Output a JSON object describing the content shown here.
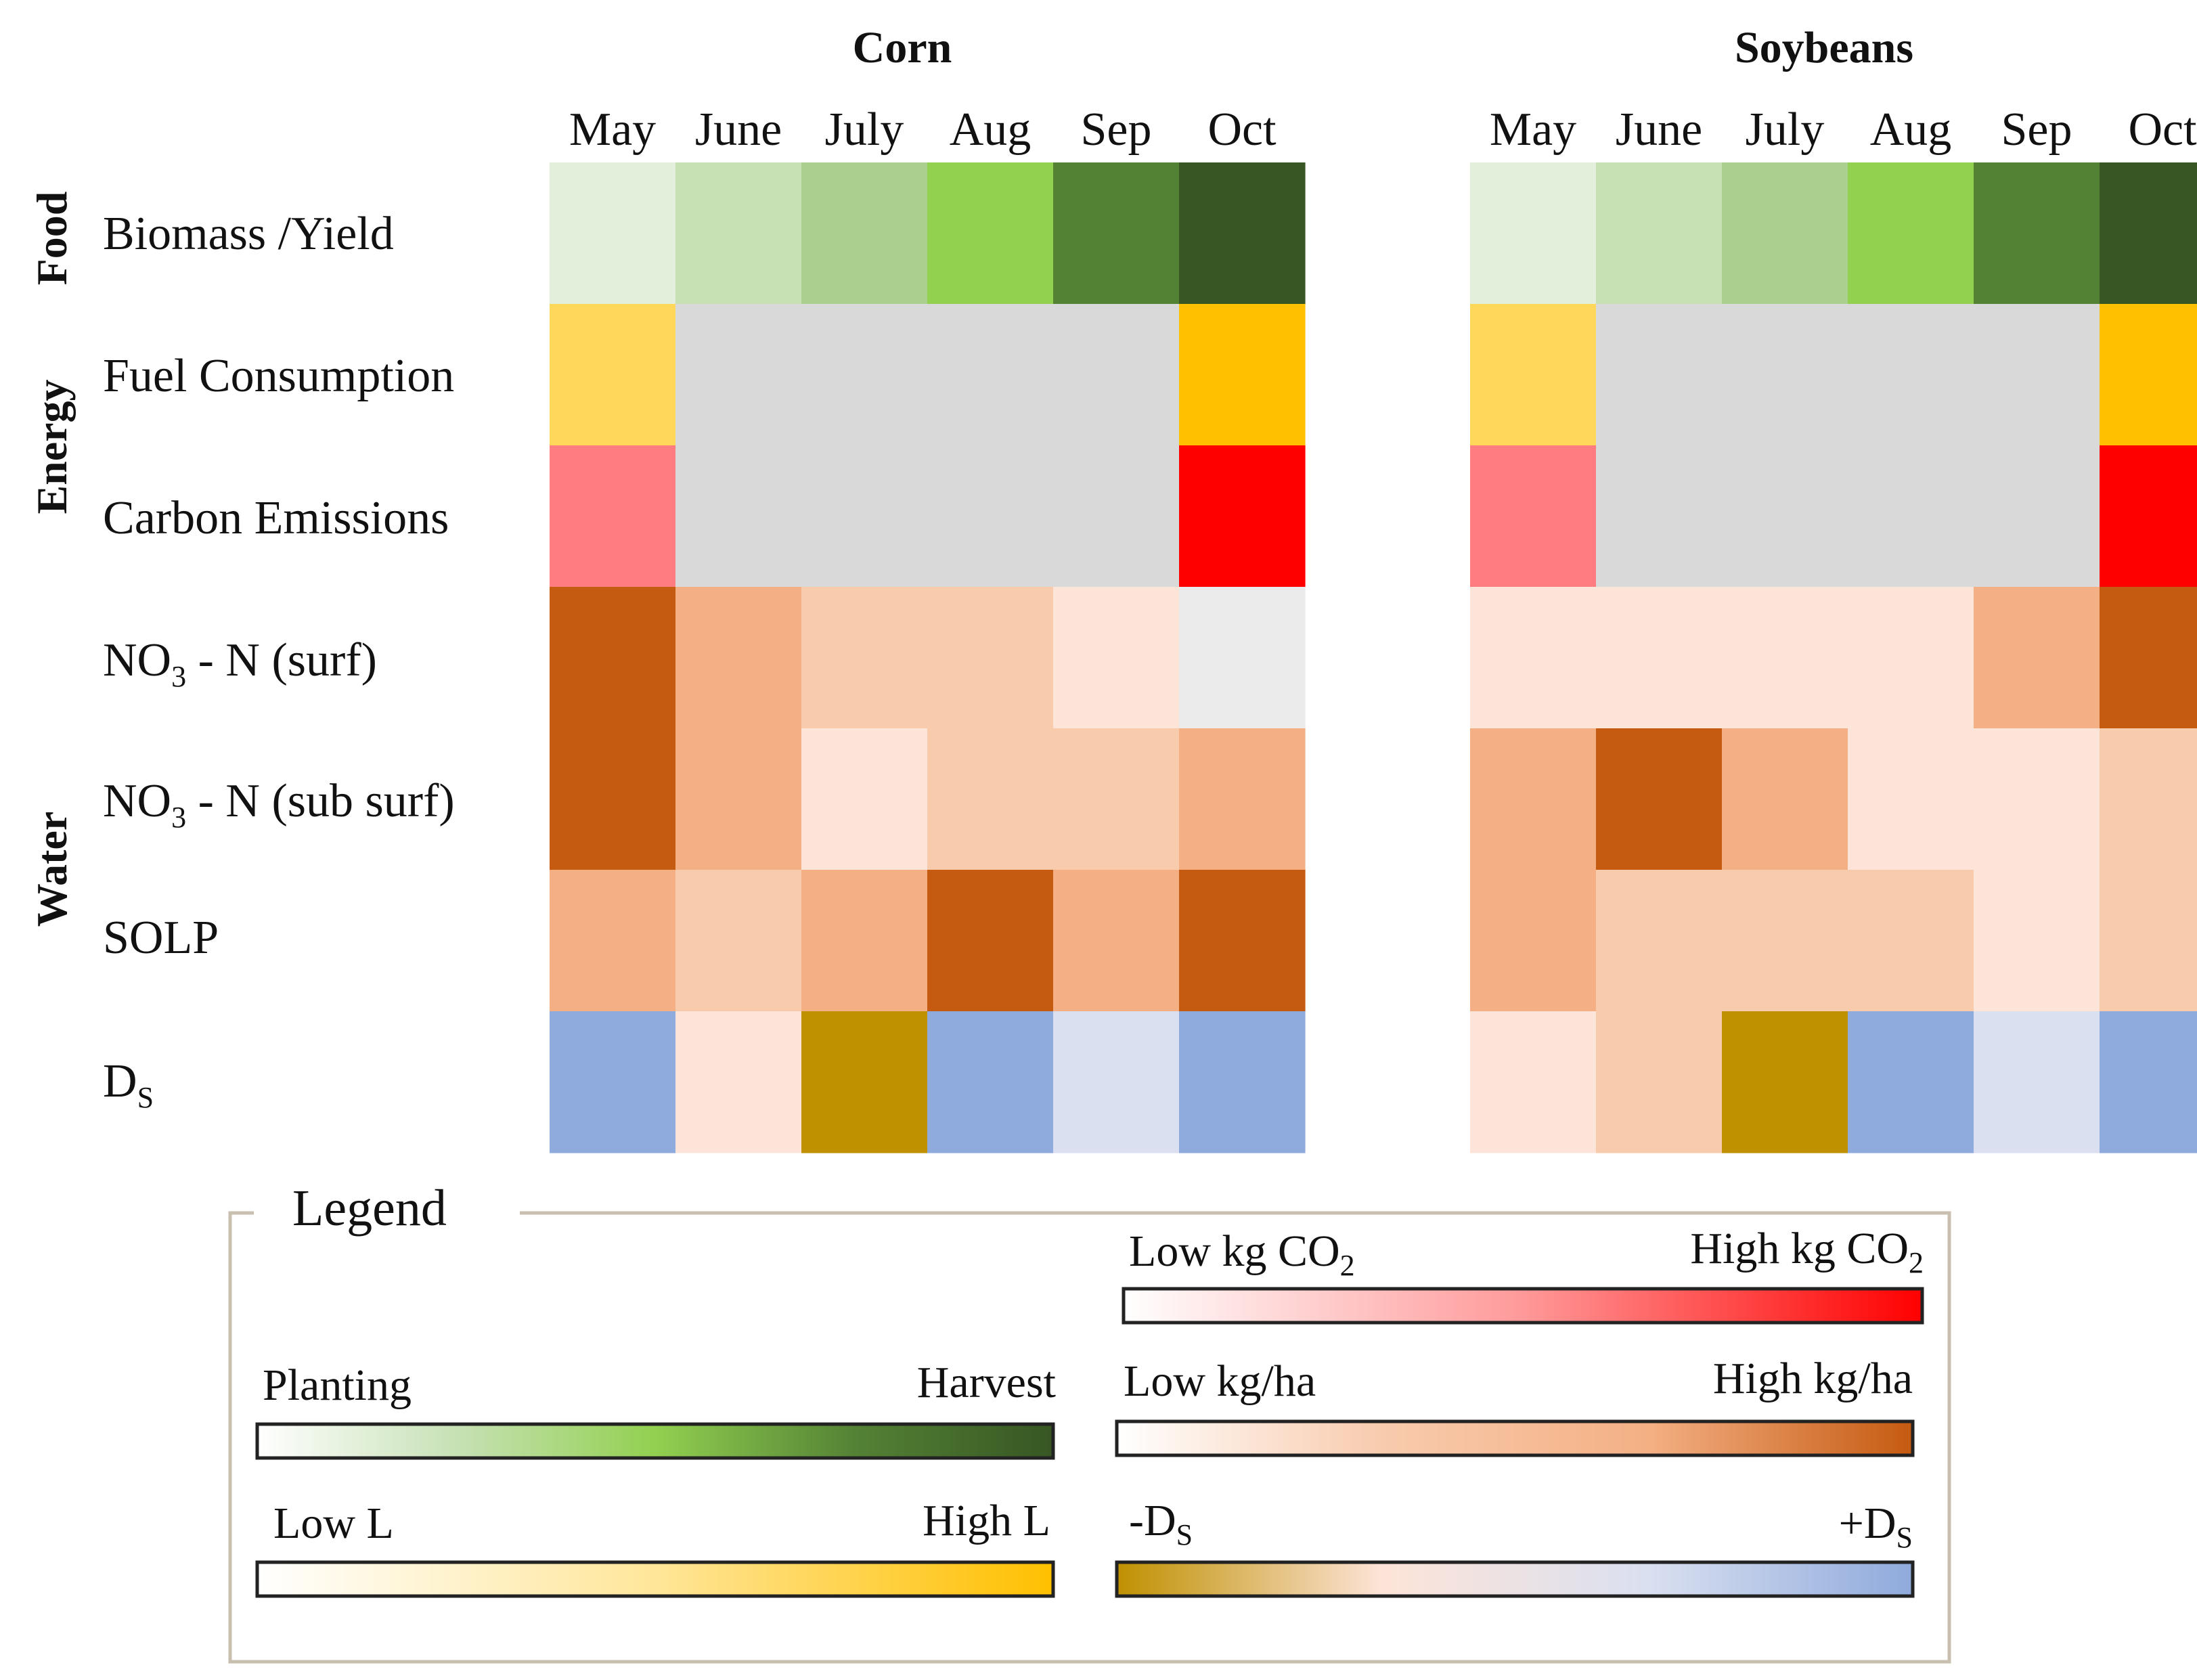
{
  "chart_data": {
    "type": "heatmap",
    "months": [
      "May",
      "June",
      "July",
      "Aug",
      "Sep",
      "Oct"
    ],
    "rows": [
      {
        "group": "Food",
        "label": "Biomass /Yield",
        "scale": "growth"
      },
      {
        "group": "Energy",
        "label": "Fuel Consumption",
        "scale": "fuel"
      },
      {
        "group": "Energy",
        "label": "Carbon Emissions",
        "scale": "carbon"
      },
      {
        "group": "Water",
        "label_main": "NO",
        "label_sub": "3",
        "label_rest": " - N (surf)",
        "scale": "nutrient"
      },
      {
        "group": "Water",
        "label_main": "NO",
        "label_sub": "3",
        "label_rest": " - N (sub surf)",
        "scale": "nutrient"
      },
      {
        "group": "Water",
        "label": "SOLP",
        "scale": "nutrient"
      },
      {
        "group": "Water",
        "label_main": "D",
        "label_sub": "S",
        "label_rest": "",
        "scale": "ds"
      }
    ],
    "groups": [
      {
        "name": "Food",
        "rows": [
          0,
          0
        ]
      },
      {
        "name": "Energy",
        "rows": [
          1,
          2
        ]
      },
      {
        "name": "Water",
        "rows": [
          3,
          6
        ]
      }
    ],
    "panels": [
      {
        "title": "Corn",
        "cells": [
          [
            "#e3eedb",
            "#c7e1b5",
            "#a9d08e",
            "#92d050",
            "#548235",
            "#375623"
          ],
          [
            "#ffd85b",
            "#d9d9d9",
            "#d9d9d9",
            "#d9d9d9",
            "#d9d9d9",
            "#ffc000"
          ],
          [
            "#ff7c80",
            "#d9d9d9",
            "#d9d9d9",
            "#d9d9d9",
            "#d9d9d9",
            "#ff0000"
          ],
          [
            "#c55a11",
            "#f4b084",
            "#f8cbad",
            "#f8cbad",
            "#fde4d8",
            "#ebebeb"
          ],
          [
            "#c55a11",
            "#f4b084",
            "#fde4d8",
            "#f8cbad",
            "#f8cbad",
            "#f4b084"
          ],
          [
            "#f4b084",
            "#f8cbad",
            "#f4b084",
            "#c55a11",
            "#f4b084",
            "#c55a11"
          ],
          [
            "#8faadc",
            "#fde4d8",
            "#bf9000",
            "#8faadc",
            "#dae0f0",
            "#8faadc"
          ]
        ]
      },
      {
        "title": "Soybeans",
        "cells": [
          [
            "#e3eedb",
            "#c7e1b5",
            "#a9d08e",
            "#92d050",
            "#548235",
            "#375623"
          ],
          [
            "#ffd85b",
            "#d9d9d9",
            "#d9d9d9",
            "#d9d9d9",
            "#d9d9d9",
            "#ffc000"
          ],
          [
            "#ff7c80",
            "#d9d9d9",
            "#d9d9d9",
            "#d9d9d9",
            "#d9d9d9",
            "#ff0000"
          ],
          [
            "#fde4d8",
            "#fde4d8",
            "#fde4d8",
            "#fde4d8",
            "#f4b084",
            "#c55a11"
          ],
          [
            "#f4b084",
            "#c55a11",
            "#f4b084",
            "#fde4d8",
            "#fde4d8",
            "#f8cbad"
          ],
          [
            "#f4b084",
            "#f8cbad",
            "#f8cbad",
            "#f8cbad",
            "#fde4d8",
            "#f8cbad"
          ],
          [
            "#fde4d8",
            "#f8cbad",
            "#bf9000",
            "#8faadc",
            "#dae0f0",
            "#8faadc"
          ]
        ]
      }
    ],
    "legend": {
      "title": "Legend",
      "scales": [
        {
          "id": "carbon",
          "low": "Low kg CO",
          "low_sub": "2",
          "high": "High kg CO",
          "high_sub": "2",
          "colors": [
            "#ffffff",
            "#ff9999",
            "#ff0000"
          ]
        },
        {
          "id": "growth",
          "low": "Planting",
          "high": "Harvest",
          "colors": [
            "#ffffff",
            "#c7e1b5",
            "#92d050",
            "#548235",
            "#375623"
          ]
        },
        {
          "id": "nutrient",
          "low": "Low kg/ha",
          "high": "High kg/ha",
          "colors": [
            "#ffffff",
            "#f8cbad",
            "#f4b084",
            "#c55a11"
          ]
        },
        {
          "id": "fuel",
          "low": "Low L",
          "high": "High L",
          "colors": [
            "#ffffff",
            "#ffe699",
            "#ffc000"
          ]
        },
        {
          "id": "ds",
          "low": "-D",
          "low_sub": "S",
          "high": "+D",
          "high_sub": "S",
          "colors": [
            "#bf9000",
            "#fde4d8",
            "#dae0f0",
            "#8faadc"
          ]
        }
      ]
    }
  }
}
